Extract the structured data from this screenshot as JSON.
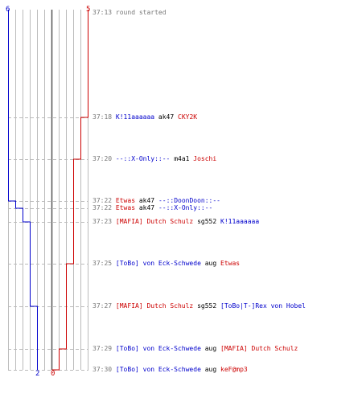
{
  "scores": {
    "blue_start": "6",
    "red_start": "5",
    "blue_end": "2",
    "red_end": "0"
  },
  "colors": {
    "blue_team": "#0000cc",
    "red_team": "#cc0000",
    "timestamp": "#777777",
    "grid": "#bbbbbb",
    "grid_center": "#555555"
  },
  "events": [
    {
      "time": "37:13",
      "note": "round started"
    },
    {
      "time": "37:18",
      "killer": "K!11aaaaaa",
      "killer_team": "blue",
      "weapon": "ak47",
      "victim": "CKY2K",
      "victim_team": "red"
    },
    {
      "time": "37:20",
      "killer": "--::X-Only::--",
      "killer_team": "blue",
      "weapon": "m4a1",
      "victim": "Joschi",
      "victim_team": "red"
    },
    {
      "time": "37:22",
      "killer": "Etwas",
      "killer_team": "red",
      "weapon": "ak47",
      "victim": "--::DoonDoon::--",
      "victim_team": "blue"
    },
    {
      "time": "37:22",
      "killer": "Etwas",
      "killer_team": "red",
      "weapon": "ak47",
      "victim": "--::X-Only::--",
      "victim_team": "blue"
    },
    {
      "time": "37:23",
      "killer": "[MAFIA] Dutch Schulz",
      "killer_team": "red",
      "weapon": "sg552",
      "victim": "K!11aaaaaa",
      "victim_team": "blue"
    },
    {
      "time": "37:25",
      "killer": "[ToBo] von Eck-Schwede",
      "killer_team": "blue",
      "weapon": "aug",
      "victim": "Etwas",
      "victim_team": "red"
    },
    {
      "time": "37:27",
      "killer": "[MAFIA] Dutch Schulz",
      "killer_team": "red",
      "weapon": "sg552",
      "victim": "[ToBo|T-]Rex von Hobel",
      "victim_team": "blue"
    },
    {
      "time": "37:29",
      "killer": "[ToBo] von Eck-Schwede",
      "killer_team": "blue",
      "weapon": "aug",
      "victim": "[MAFIA] Dutch Schulz",
      "victim_team": "red"
    },
    {
      "time": "37:30",
      "killer": "[ToBo] von Eck-Schwede",
      "killer_team": "blue",
      "weapon": "aug",
      "victim": "keF@mp3",
      "victim_team": "red"
    }
  ]
}
